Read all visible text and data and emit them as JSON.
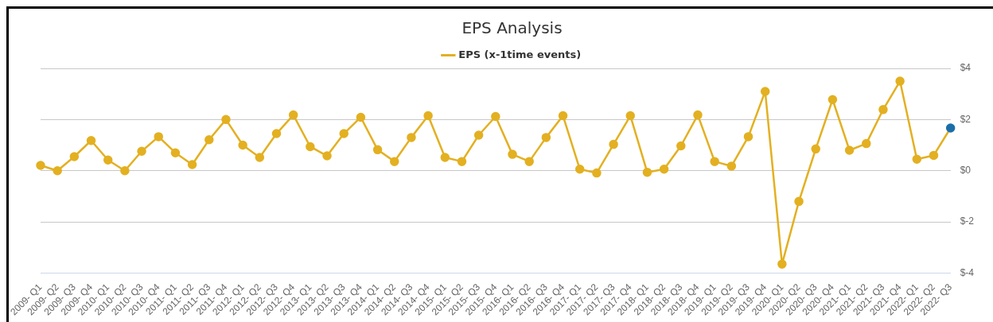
{
  "chart_data": {
    "type": "line",
    "title": "EPS Analysis",
    "categories": [
      "2009- Q1",
      "2009- Q2",
      "2009- Q3",
      "2009- Q4",
      "2010- Q1",
      "2010- Q2",
      "2010- Q3",
      "2010- Q4",
      "2011- Q1",
      "2011- Q2",
      "2011- Q3",
      "2011- Q4",
      "2012- Q1",
      "2012- Q2",
      "2012- Q3",
      "2012- Q4",
      "2013- Q1",
      "2013- Q2",
      "2013- Q3",
      "2013- Q4",
      "2014- Q1",
      "2014- Q2",
      "2014- Q3",
      "2014- Q4",
      "2015- Q1",
      "2015- Q2",
      "2015- Q3",
      "2015- Q4",
      "2016- Q1",
      "2016- Q2",
      "2016- Q3",
      "2016- Q4",
      "2017- Q1",
      "2017- Q2",
      "2017- Q3",
      "2017- Q4",
      "2018- Q1",
      "2018- Q2",
      "2018- Q3",
      "2018- Q4",
      "2019- Q1",
      "2019- Q2",
      "2019- Q3",
      "2019- Q4",
      "2020- Q1",
      "2020- Q2",
      "2020- Q3",
      "2020- Q4",
      "2021- Q1",
      "2021- Q2",
      "2021- Q3",
      "2021- Q4",
      "2022- Q1",
      "2022- Q2",
      "2022- Q3"
    ],
    "series": [
      {
        "name": "EPS (x-1time events)",
        "color": "#e3b021",
        "colors": [
          "#e3b021",
          "#e3b021",
          "#e3b021",
          "#e3b021",
          "#e3b021",
          "#e3b021",
          "#e3b021",
          "#e3b021",
          "#e3b021",
          "#e3b021",
          "#e3b021",
          "#e3b021",
          "#e3b021",
          "#e3b021",
          "#e3b021",
          "#e3b021",
          "#e3b021",
          "#e3b021",
          "#e3b021",
          "#e3b021",
          "#e3b021",
          "#e3b021",
          "#e3b021",
          "#e3b021",
          "#e3b021",
          "#e3b021",
          "#e3b021",
          "#e3b021",
          "#e3b021",
          "#e3b021",
          "#e3b021",
          "#e3b021",
          "#e3b021",
          "#e3b021",
          "#e3b021",
          "#e3b021",
          "#e3b021",
          "#e3b021",
          "#e3b021",
          "#e3b021",
          "#e3b021",
          "#e3b021",
          "#e3b021",
          "#e3b021",
          "#e3b021",
          "#e3b021",
          "#e3b021",
          "#e3b021",
          "#e3b021",
          "#e3b021",
          "#e3b021",
          "#e3b021",
          "#e3b021",
          "#e3b021",
          "#1a6fa8"
        ],
        "values": [
          0.21,
          0.0,
          0.55,
          1.18,
          0.42,
          0.0,
          0.76,
          1.33,
          0.7,
          0.24,
          1.21,
          2.0,
          1.0,
          0.52,
          1.45,
          2.18,
          0.94,
          0.58,
          1.45,
          2.09,
          0.82,
          0.36,
          1.3,
          2.15,
          0.52,
          0.36,
          1.39,
          2.12,
          0.64,
          0.36,
          1.3,
          2.15,
          0.06,
          -0.09,
          1.03,
          2.15,
          -0.06,
          0.06,
          0.97,
          2.18,
          0.36,
          0.18,
          1.33,
          3.1,
          -3.65,
          -1.2,
          0.85,
          2.78,
          0.8,
          1.06,
          2.39,
          3.5,
          0.45,
          0.6,
          1.67
        ]
      }
    ],
    "ylim": [
      -4,
      4
    ],
    "yticks": [
      {
        "value": -4,
        "label": "$-4"
      },
      {
        "value": -2,
        "label": "$-2"
      },
      {
        "value": 0,
        "label": "$0"
      },
      {
        "value": 2,
        "label": "$2"
      },
      {
        "value": 4,
        "label": "$4"
      }
    ],
    "grid": "y",
    "legend": "top",
    "marker": "circle",
    "line_style": "solid"
  }
}
